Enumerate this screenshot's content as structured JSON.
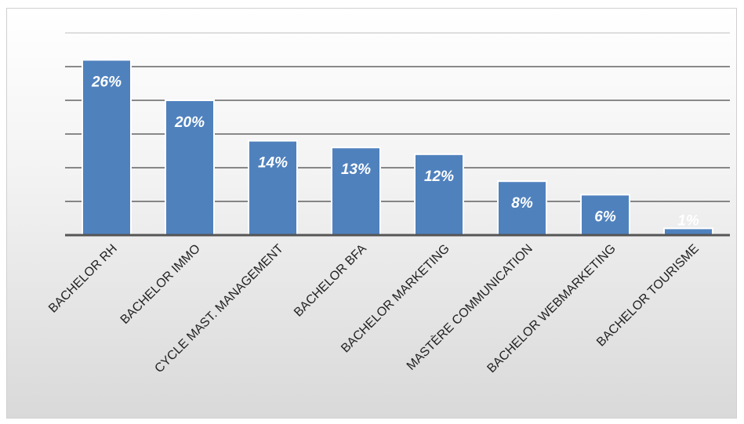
{
  "chart_data": {
    "type": "bar",
    "categories": [
      "BACHELOR RH",
      "BACHELOR IMMO",
      "CYCLE MAST. MANAGEMENT",
      "BACHELOR BFA",
      "BACHELOR MARKETING",
      "MASTÈRE COMMUNICATION",
      "BACHELOR WEBMARKETING",
      "BACHELOR TOURISME"
    ],
    "values": [
      26,
      20,
      14,
      13,
      12,
      8,
      6,
      1
    ],
    "data_labels": [
      "26%",
      "20%",
      "14%",
      "13%",
      "12%",
      "8%",
      "6%",
      "1%"
    ],
    "unit": "%",
    "ylim": [
      0,
      30
    ],
    "y_tick_step": 5,
    "grid": true,
    "legend": "none",
    "bar_color": "#4f81bd",
    "label_color": "#ffffff"
  }
}
